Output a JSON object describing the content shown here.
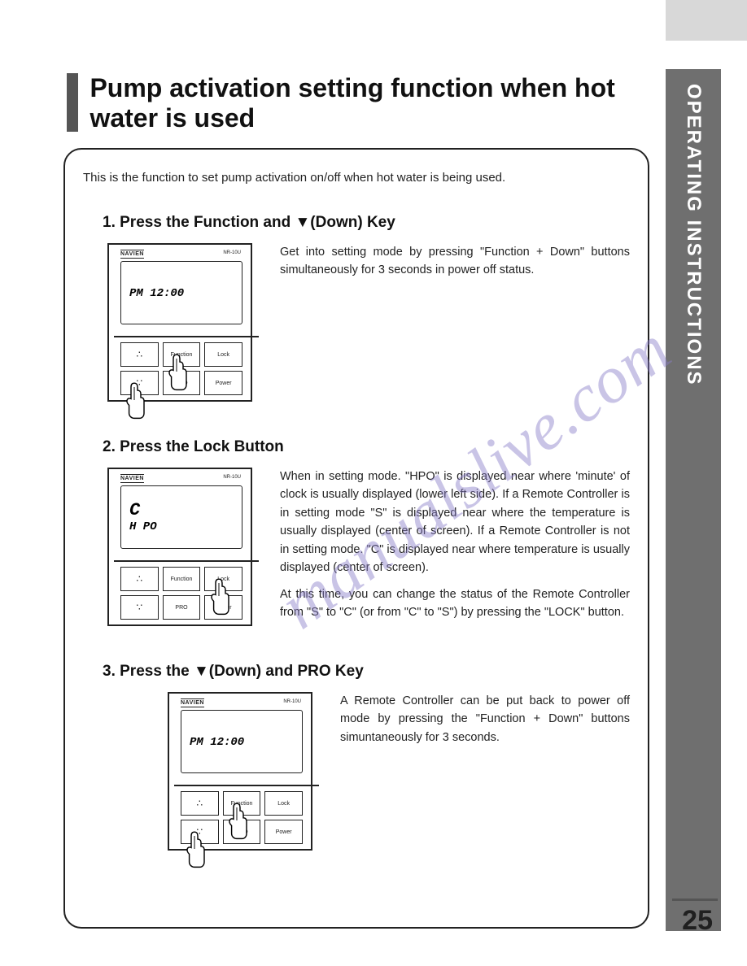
{
  "colors": {
    "side_tab_bg": "#6f6f6f",
    "side_tab_text": "#ffffff",
    "frame_border": "#222222",
    "title_bar": "#555555",
    "watermark": "#8a7ec9",
    "top_strip": "#d8d8d8"
  },
  "page_number": "25",
  "side_tab_label": "OPERATING INSTRUCTIONS",
  "title": "Pump activation setting function when hot water is used",
  "intro": "This is the function to set pump activation on/off when hot water is being used.",
  "watermark_text": "manualslive.com",
  "remote": {
    "brand": "NAVIEN",
    "model": "NR-10U",
    "button_labels": {
      "up": "▲",
      "function": "Function",
      "lock": "Lock",
      "down": "▼",
      "pro": "PRO",
      "power": "Power"
    }
  },
  "steps": [
    {
      "heading": "1. Press the Function and  ▼(Down) Key",
      "screen_main": "",
      "screen_sub": "PM 12:00",
      "desc_paragraphs": [
        "Get into setting mode by pressing \"Function + Down\" buttons simultaneously for 3 seconds in power off status."
      ],
      "hands": [
        {
          "row": 0,
          "col": 1
        },
        {
          "row": 1,
          "col": 0
        }
      ]
    },
    {
      "heading": "2. Press the Lock Button",
      "screen_main": "C",
      "screen_sub": "H PO",
      "desc_paragraphs": [
        "When in setting mode. \"HPO\" is displayed near where 'minute' of clock is usually displayed (lower left side). If a Remote Controller is in setting mode \"S\" is displayed near where the temperature is usually displayed (center of screen). If a Remote Controller is not in setting mode. \"C\" is displayed near where temperature is usually displayed (center of screen).",
        "At this time, you can change the status of the Remote Controller from \"S\" to \"C\" (or from \"C\" to \"S\") by pressing the \"LOCK\" button."
      ],
      "hands": [
        {
          "row": 0,
          "col": 2
        }
      ]
    },
    {
      "heading": "3. Press the  ▼(Down) and PRO Key",
      "screen_main": "",
      "screen_sub": "PM 12:00",
      "desc_paragraphs": [
        "A Remote Controller can be put back to power off mode by pressing the  \"Function + Down\" buttons simuntaneously for 3 seconds."
      ],
      "hands": [
        {
          "row": 0,
          "col": 1
        },
        {
          "row": 1,
          "col": 0
        }
      ]
    }
  ]
}
